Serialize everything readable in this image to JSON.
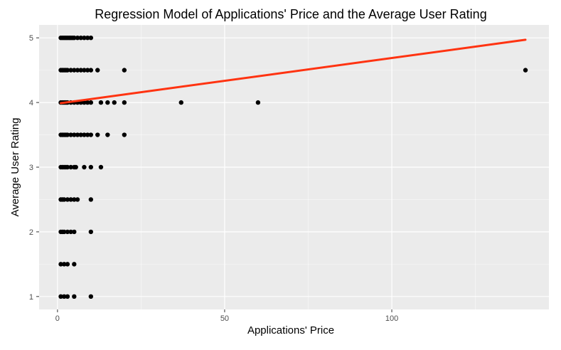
{
  "chart_data": {
    "type": "scatter",
    "title": "Regression Model of Applications' Price and the Average User Rating",
    "xlabel": "Applications' Price",
    "ylabel": "Average User Rating",
    "xlim": [
      -5.5,
      147
    ],
    "ylim": [
      0.8,
      5.2
    ],
    "x_ticks": [
      0,
      50,
      100
    ],
    "y_ticks": [
      1,
      2,
      3,
      4,
      5
    ],
    "grid": true,
    "colors": {
      "panel_background": "#EBEBEB",
      "grid_major": "#FFFFFF",
      "points": "#000000",
      "regression_line": "#FF3311",
      "text": "#000000",
      "tick_text": "#4D4D4D"
    },
    "points": [
      {
        "x": 0.99,
        "y": 5
      },
      {
        "x": 1.5,
        "y": 5
      },
      {
        "x": 1.99,
        "y": 5
      },
      {
        "x": 2.5,
        "y": 5
      },
      {
        "x": 2.99,
        "y": 5
      },
      {
        "x": 3.5,
        "y": 5
      },
      {
        "x": 3.99,
        "y": 5
      },
      {
        "x": 4.5,
        "y": 5
      },
      {
        "x": 4.99,
        "y": 5
      },
      {
        "x": 5.99,
        "y": 5
      },
      {
        "x": 6.99,
        "y": 5
      },
      {
        "x": 7.99,
        "y": 5
      },
      {
        "x": 8.99,
        "y": 5
      },
      {
        "x": 9.99,
        "y": 5
      },
      {
        "x": 0.99,
        "y": 4.5
      },
      {
        "x": 1.5,
        "y": 4.5
      },
      {
        "x": 1.99,
        "y": 4.5
      },
      {
        "x": 2.5,
        "y": 4.5
      },
      {
        "x": 2.99,
        "y": 4.5
      },
      {
        "x": 3.99,
        "y": 4.5
      },
      {
        "x": 4.99,
        "y": 4.5
      },
      {
        "x": 5.99,
        "y": 4.5
      },
      {
        "x": 6.99,
        "y": 4.5
      },
      {
        "x": 7.99,
        "y": 4.5
      },
      {
        "x": 8.99,
        "y": 4.5
      },
      {
        "x": 9.99,
        "y": 4.5
      },
      {
        "x": 11.99,
        "y": 4.5
      },
      {
        "x": 19.99,
        "y": 4.5
      },
      {
        "x": 139.99,
        "y": 4.5
      },
      {
        "x": 0.99,
        "y": 4
      },
      {
        "x": 1.5,
        "y": 4
      },
      {
        "x": 1.99,
        "y": 4
      },
      {
        "x": 2.5,
        "y": 4
      },
      {
        "x": 2.99,
        "y": 4
      },
      {
        "x": 3.99,
        "y": 4
      },
      {
        "x": 4.99,
        "y": 4
      },
      {
        "x": 5.99,
        "y": 4
      },
      {
        "x": 6.99,
        "y": 4
      },
      {
        "x": 7.99,
        "y": 4
      },
      {
        "x": 8.99,
        "y": 4
      },
      {
        "x": 9.99,
        "y": 4
      },
      {
        "x": 12.99,
        "y": 4
      },
      {
        "x": 14.99,
        "y": 4
      },
      {
        "x": 16.99,
        "y": 4
      },
      {
        "x": 19.99,
        "y": 4
      },
      {
        "x": 36.99,
        "y": 4
      },
      {
        "x": 59.99,
        "y": 4
      },
      {
        "x": 0.99,
        "y": 3.5
      },
      {
        "x": 1.5,
        "y": 3.5
      },
      {
        "x": 1.99,
        "y": 3.5
      },
      {
        "x": 2.5,
        "y": 3.5
      },
      {
        "x": 2.99,
        "y": 3.5
      },
      {
        "x": 3.99,
        "y": 3.5
      },
      {
        "x": 4.99,
        "y": 3.5
      },
      {
        "x": 5.99,
        "y": 3.5
      },
      {
        "x": 6.99,
        "y": 3.5
      },
      {
        "x": 7.99,
        "y": 3.5
      },
      {
        "x": 8.99,
        "y": 3.5
      },
      {
        "x": 9.99,
        "y": 3.5
      },
      {
        "x": 11.99,
        "y": 3.5
      },
      {
        "x": 14.99,
        "y": 3.5
      },
      {
        "x": 19.99,
        "y": 3.5
      },
      {
        "x": 0.99,
        "y": 3
      },
      {
        "x": 1.5,
        "y": 3
      },
      {
        "x": 1.99,
        "y": 3
      },
      {
        "x": 2.5,
        "y": 3
      },
      {
        "x": 2.99,
        "y": 3
      },
      {
        "x": 3.99,
        "y": 3
      },
      {
        "x": 4.99,
        "y": 3
      },
      {
        "x": 5.5,
        "y": 3
      },
      {
        "x": 7.99,
        "y": 3
      },
      {
        "x": 9.99,
        "y": 3
      },
      {
        "x": 12.99,
        "y": 3
      },
      {
        "x": 0.99,
        "y": 2.5
      },
      {
        "x": 1.5,
        "y": 2.5
      },
      {
        "x": 1.99,
        "y": 2.5
      },
      {
        "x": 2.99,
        "y": 2.5
      },
      {
        "x": 3.99,
        "y": 2.5
      },
      {
        "x": 4.99,
        "y": 2.5
      },
      {
        "x": 5.99,
        "y": 2.5
      },
      {
        "x": 9.99,
        "y": 2.5
      },
      {
        "x": 0.99,
        "y": 2
      },
      {
        "x": 1.5,
        "y": 2
      },
      {
        "x": 1.99,
        "y": 2
      },
      {
        "x": 2.99,
        "y": 2
      },
      {
        "x": 3.99,
        "y": 2
      },
      {
        "x": 4.99,
        "y": 2
      },
      {
        "x": 9.99,
        "y": 2
      },
      {
        "x": 0.99,
        "y": 1.5
      },
      {
        "x": 1.99,
        "y": 1.5
      },
      {
        "x": 2.99,
        "y": 1.5
      },
      {
        "x": 4.99,
        "y": 1.5
      },
      {
        "x": 0.99,
        "y": 1
      },
      {
        "x": 1.99,
        "y": 1
      },
      {
        "x": 2.99,
        "y": 1
      },
      {
        "x": 4.99,
        "y": 1
      },
      {
        "x": 9.99,
        "y": 1
      }
    ],
    "regression_line": {
      "x": [
        0.99,
        139.99
      ],
      "y": [
        3.99,
        4.97
      ]
    }
  }
}
